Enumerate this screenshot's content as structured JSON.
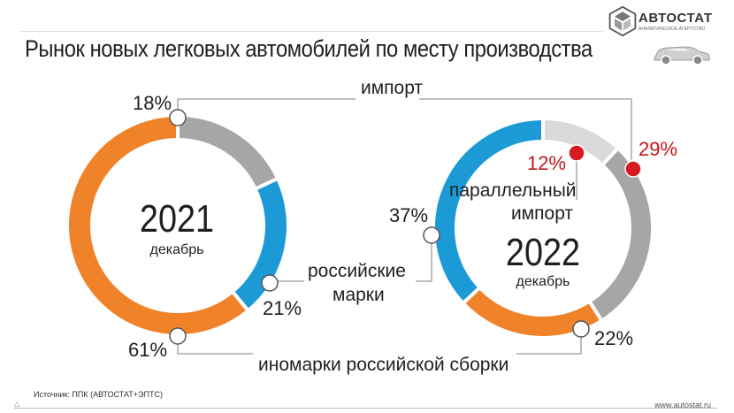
{
  "header": {
    "title": "Рынок новых легковых автомобилей по месту производства",
    "logo_text": "АВТОСТАТ",
    "logo_sub": "АНАЛИТИЧЕСКОЕ АГЕНТСТВО"
  },
  "footer": {
    "source": "Источник: ППК (АВТОСТАТ+ЭПТС)",
    "site": "www.autostat.ru"
  },
  "colors": {
    "orange": "#f0822a",
    "blue": "#1b9ad6",
    "gray": "#a6a6a6",
    "light_gray": "#d9d9d9",
    "red": "#d71920",
    "connector": "#9a9a9a"
  },
  "icons": [
    "logo-icon",
    "car-icon",
    "footer-triangle-icon"
  ],
  "chart_data": [
    {
      "type": "pie",
      "variant": "donut",
      "center_label": "2021",
      "center_sublabel": "декабрь",
      "slices": [
        {
          "category": "импорт",
          "value": 18,
          "label": "18%",
          "color": "#a6a6a6"
        },
        {
          "category": "российские марки",
          "value": 21,
          "label": "21%",
          "color": "#1b9ad6"
        },
        {
          "category": "иномарки российской сборки",
          "value": 61,
          "label": "61%",
          "color": "#f0822a"
        }
      ]
    },
    {
      "type": "pie",
      "variant": "donut",
      "center_label": "2022",
      "center_sublabel": "декабрь",
      "slices": [
        {
          "category": "параллельный импорт",
          "value": 12,
          "label": "12%",
          "color": "#d9d9d9"
        },
        {
          "category": "импорт",
          "value": 29,
          "label": "29%",
          "color": "#a6a6a6"
        },
        {
          "category": "иномарки российской сборки",
          "value": 22,
          "label": "22%",
          "color": "#f0822a"
        },
        {
          "category": "российские марки",
          "value": 37,
          "label": "37%",
          "color": "#1b9ad6"
        }
      ]
    }
  ],
  "annotations": {
    "import": "импорт",
    "parallel_import_line1": "параллельный",
    "parallel_import_line2": "импорт",
    "russian_brands_line1": "российские",
    "russian_brands_line2": "марки",
    "foreign_assembled": "иномарки российской сборки"
  }
}
